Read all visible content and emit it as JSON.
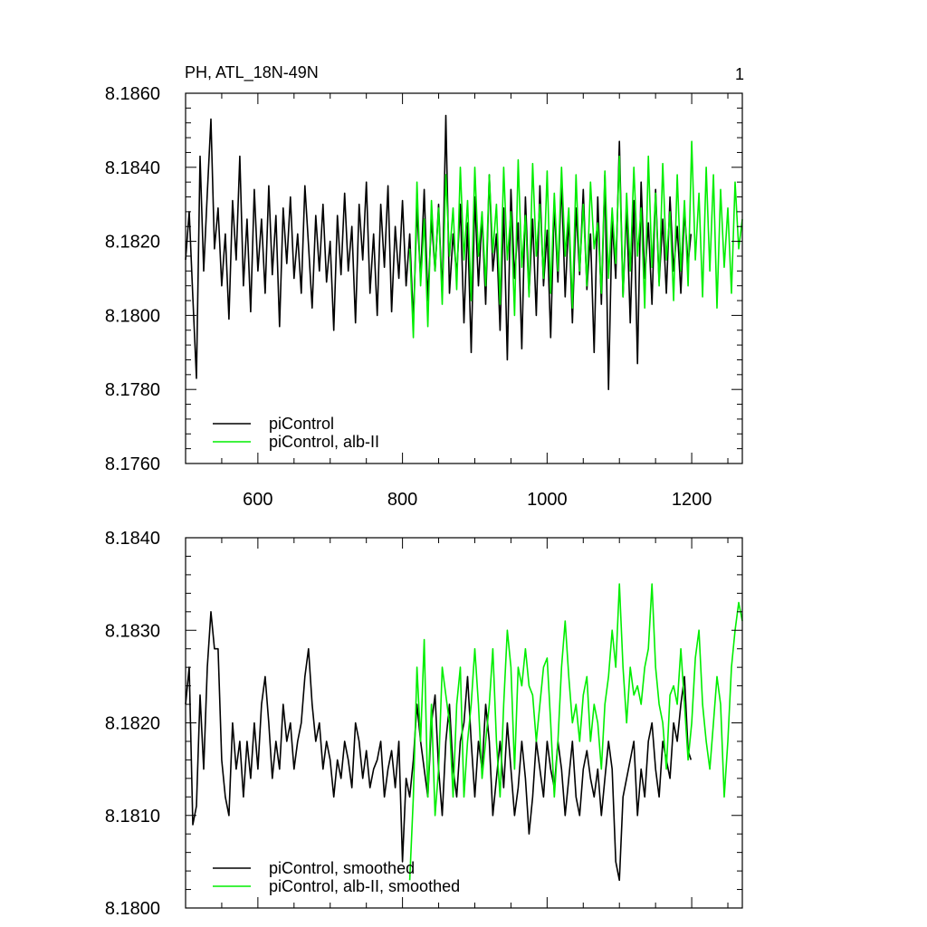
{
  "panel_number": "1",
  "colors": {
    "black_series": "#000000",
    "green_series": "#00ee00",
    "axes": "#000000"
  },
  "chart_data": [
    {
      "type": "line",
      "title": "PH, ATL_18N-49N",
      "xlabel": "",
      "ylabel": "",
      "xlim": [
        500,
        1270
      ],
      "ylim": [
        8.176,
        8.186
      ],
      "xticks": [
        600,
        800,
        1000,
        1200
      ],
      "xtick_labels": [
        "600",
        "800",
        "1000",
        "1200"
      ],
      "yticks": [
        8.176,
        8.178,
        8.18,
        8.182,
        8.184,
        8.186
      ],
      "ytick_labels": [
        "8.1760",
        "8.1780",
        "8.1800",
        "8.1820",
        "8.1840",
        "8.1860"
      ],
      "legend_position": "bottom-left",
      "series": [
        {
          "name": "piControl",
          "color": "#000000",
          "x": [
            500,
            505,
            510,
            515,
            520,
            525,
            530,
            535,
            540,
            545,
            550,
            555,
            560,
            565,
            570,
            575,
            580,
            585,
            590,
            595,
            600,
            605,
            610,
            615,
            620,
            625,
            630,
            635,
            640,
            645,
            650,
            655,
            660,
            665,
            670,
            675,
            680,
            685,
            690,
            695,
            700,
            705,
            710,
            715,
            720,
            725,
            730,
            735,
            740,
            745,
            750,
            755,
            760,
            765,
            770,
            775,
            780,
            785,
            790,
            795,
            800,
            805,
            810,
            815,
            820,
            825,
            830,
            835,
            840,
            845,
            850,
            855,
            860,
            865,
            870,
            875,
            880,
            885,
            890,
            895,
            900,
            905,
            910,
            915,
            920,
            925,
            930,
            935,
            940,
            945,
            950,
            955,
            960,
            965,
            970,
            975,
            980,
            985,
            990,
            995,
            1000,
            1005,
            1010,
            1015,
            1020,
            1025,
            1030,
            1035,
            1040,
            1045,
            1050,
            1055,
            1060,
            1065,
            1070,
            1075,
            1080,
            1085,
            1090,
            1095,
            1100,
            1105,
            1110,
            1115,
            1120,
            1125,
            1130,
            1135,
            1140,
            1145,
            1150,
            1155,
            1160,
            1165,
            1170,
            1175,
            1180,
            1185,
            1190,
            1195,
            1199
          ],
          "y": [
            8.1815,
            8.1828,
            8.1805,
            8.1783,
            8.1843,
            8.1812,
            8.1833,
            8.1853,
            8.1818,
            8.1829,
            8.1808,
            8.1822,
            8.1799,
            8.1831,
            8.1815,
            8.1843,
            8.1808,
            8.1826,
            8.1801,
            8.1834,
            8.1812,
            8.1826,
            8.1806,
            8.1835,
            8.1811,
            8.1827,
            8.1797,
            8.1829,
            8.1814,
            8.1832,
            8.181,
            8.1822,
            8.1806,
            8.1835,
            8.1819,
            8.1802,
            8.1827,
            8.1812,
            8.183,
            8.1809,
            8.182,
            8.1796,
            8.1827,
            8.1811,
            8.1833,
            8.1812,
            8.1824,
            8.1798,
            8.183,
            8.1815,
            8.1836,
            8.1806,
            8.1822,
            8.18,
            8.183,
            8.1813,
            8.1835,
            8.1801,
            8.1824,
            8.181,
            8.1831,
            8.1808,
            8.1822,
            8.1798,
            8.1829,
            8.181,
            8.1834,
            8.1804,
            8.1826,
            8.1812,
            8.183,
            8.1805,
            8.1854,
            8.1806,
            8.1822,
            8.1811,
            8.183,
            8.1798,
            8.1825,
            8.179,
            8.1832,
            8.1808,
            8.1827,
            8.1803,
            8.1838,
            8.1812,
            8.1822,
            8.1796,
            8.1829,
            8.1788,
            8.1834,
            8.181,
            8.1825,
            8.1791,
            8.1832,
            8.1806,
            8.1826,
            8.18,
            8.1835,
            8.1808,
            8.1823,
            8.1794,
            8.183,
            8.1809,
            8.1836,
            8.1805,
            8.1827,
            8.1798,
            8.1829,
            8.1811,
            8.1834,
            8.1807,
            8.1822,
            8.179,
            8.1832,
            8.1803,
            8.1838,
            8.178,
            8.1826,
            8.181,
            8.1847,
            8.1805,
            8.1829,
            8.1798,
            8.1831,
            8.1787,
            8.1836,
            8.181,
            8.1825,
            8.1803,
            8.1834,
            8.1809,
            8.1826,
            8.1806,
            8.1832,
            8.1812,
            8.1824,
            8.1806,
            8.1828,
            8.1814,
            8.1822
          ]
        },
        {
          "name": "piControl, alb-II",
          "color": "#00ee00",
          "x": [
            810,
            815,
            820,
            825,
            830,
            835,
            840,
            845,
            850,
            855,
            860,
            865,
            870,
            875,
            880,
            885,
            890,
            895,
            900,
            905,
            910,
            915,
            920,
            925,
            930,
            935,
            940,
            945,
            950,
            955,
            960,
            965,
            970,
            975,
            980,
            985,
            990,
            995,
            1000,
            1005,
            1010,
            1015,
            1020,
            1025,
            1030,
            1035,
            1040,
            1045,
            1050,
            1055,
            1060,
            1065,
            1070,
            1075,
            1080,
            1085,
            1090,
            1095,
            1100,
            1105,
            1110,
            1115,
            1120,
            1125,
            1130,
            1135,
            1140,
            1145,
            1150,
            1155,
            1160,
            1165,
            1170,
            1175,
            1180,
            1185,
            1190,
            1195,
            1200,
            1205,
            1210,
            1215,
            1220,
            1225,
            1230,
            1235,
            1240,
            1245,
            1250,
            1255,
            1260,
            1265,
            1270
          ],
          "y": [
            8.1818,
            8.1794,
            8.1836,
            8.1808,
            8.1826,
            8.1797,
            8.1831,
            8.1812,
            8.1829,
            8.1803,
            8.1838,
            8.1816,
            8.1829,
            8.1807,
            8.184,
            8.1815,
            8.1831,
            8.1804,
            8.184,
            8.1816,
            8.1828,
            8.1808,
            8.1838,
            8.1817,
            8.183,
            8.1803,
            8.184,
            8.1815,
            8.1828,
            8.18,
            8.1842,
            8.1813,
            8.1827,
            8.1805,
            8.1841,
            8.1816,
            8.183,
            8.181,
            8.1839,
            8.1806,
            8.1833,
            8.1812,
            8.184,
            8.1816,
            8.1829,
            8.1802,
            8.1838,
            8.1812,
            8.183,
            8.1808,
            8.1836,
            8.1818,
            8.1825,
            8.1806,
            8.1839,
            8.181,
            8.1829,
            8.1814,
            8.1843,
            8.1805,
            8.1833,
            8.1812,
            8.184,
            8.1816,
            8.1829,
            8.1802,
            8.1843,
            8.1813,
            8.1833,
            8.1808,
            8.1841,
            8.1815,
            8.1828,
            8.1804,
            8.1838,
            8.1812,
            8.1831,
            8.1808,
            8.1847,
            8.1815,
            8.1833,
            8.1805,
            8.184,
            8.1812,
            8.1838,
            8.1802,
            8.1834,
            8.1813,
            8.1829,
            8.1806,
            8.1836,
            8.1818,
            8.1826
          ]
        }
      ]
    },
    {
      "type": "line",
      "title": "",
      "xlabel": "",
      "ylabel": "",
      "xlim": [
        500,
        1270
      ],
      "ylim": [
        8.18,
        8.184
      ],
      "xticks": [
        600,
        800,
        1000,
        1200
      ],
      "yticks": [
        8.18,
        8.181,
        8.182,
        8.183,
        8.184
      ],
      "ytick_labels": [
        "8.1800",
        "8.1810",
        "8.1820",
        "8.1830",
        "8.1840"
      ],
      "legend_position": "bottom-left",
      "series": [
        {
          "name": "piControl, smoothed",
          "color": "#000000",
          "x": [
            500,
            505,
            510,
            515,
            520,
            525,
            530,
            535,
            540,
            545,
            550,
            555,
            560,
            565,
            570,
            575,
            580,
            585,
            590,
            595,
            600,
            605,
            610,
            615,
            620,
            625,
            630,
            635,
            640,
            645,
            650,
            655,
            660,
            665,
            670,
            675,
            680,
            685,
            690,
            695,
            700,
            705,
            710,
            715,
            720,
            725,
            730,
            735,
            740,
            745,
            750,
            755,
            760,
            765,
            770,
            775,
            780,
            785,
            790,
            795,
            800,
            805,
            810,
            815,
            820,
            825,
            830,
            835,
            840,
            845,
            850,
            855,
            860,
            865,
            870,
            875,
            880,
            885,
            890,
            895,
            900,
            905,
            910,
            915,
            920,
            925,
            930,
            935,
            940,
            945,
            950,
            955,
            960,
            965,
            970,
            975,
            980,
            985,
            990,
            995,
            1000,
            1005,
            1010,
            1015,
            1020,
            1025,
            1030,
            1035,
            1040,
            1045,
            1050,
            1055,
            1060,
            1065,
            1070,
            1075,
            1080,
            1085,
            1090,
            1095,
            1100,
            1105,
            1110,
            1115,
            1120,
            1125,
            1130,
            1135,
            1140,
            1145,
            1150,
            1155,
            1160,
            1165,
            1170,
            1175,
            1180,
            1185,
            1190,
            1195,
            1199
          ],
          "y": [
            8.1822,
            8.1826,
            8.1809,
            8.1811,
            8.1823,
            8.1815,
            8.1826,
            8.1832,
            8.1828,
            8.1828,
            8.1816,
            8.1812,
            8.181,
            8.182,
            8.1815,
            8.1818,
            8.1812,
            8.1818,
            8.1814,
            8.182,
            8.1815,
            8.1822,
            8.1825,
            8.182,
            8.1814,
            8.1818,
            8.1815,
            8.1822,
            8.1818,
            8.182,
            8.1815,
            8.1818,
            8.182,
            8.1825,
            8.1828,
            8.1822,
            8.1818,
            8.182,
            8.1815,
            8.1818,
            8.1816,
            8.1812,
            8.1816,
            8.1814,
            8.1818,
            8.1816,
            8.1813,
            8.182,
            8.1818,
            8.1814,
            8.1817,
            8.1813,
            8.1815,
            8.1816,
            8.1818,
            8.1812,
            8.1815,
            8.1817,
            8.1813,
            8.1818,
            8.1805,
            8.1814,
            8.1812,
            8.1816,
            8.1822,
            8.1818,
            8.1815,
            8.1812,
            8.182,
            8.1823,
            8.1815,
            8.181,
            8.1818,
            8.1822,
            8.1815,
            8.1812,
            8.1818,
            8.182,
            8.1825,
            8.1818,
            8.1812,
            8.1818,
            8.1815,
            8.1822,
            8.1818,
            8.181,
            8.1814,
            8.1818,
            8.1813,
            8.182,
            8.1815,
            8.181,
            8.1813,
            8.1818,
            8.1814,
            8.1808,
            8.1812,
            8.1818,
            8.1815,
            8.1812,
            8.1818,
            8.1815,
            8.1813,
            8.1818,
            8.1815,
            8.181,
            8.1814,
            8.1818,
            8.1812,
            8.181,
            8.1815,
            8.1817,
            8.1814,
            8.1812,
            8.1815,
            8.181,
            8.1814,
            8.1818,
            8.1815,
            8.1805,
            8.1803,
            8.1812,
            8.1814,
            8.1816,
            8.1818,
            8.181,
            8.1815,
            8.1812,
            8.1818,
            8.182,
            8.1815,
            8.1812,
            8.1818,
            8.1816,
            8.1814,
            8.182,
            8.1818,
            8.1822,
            8.1825,
            8.1817,
            8.1816
          ]
        },
        {
          "name": "piControl, alb-II, smoothed",
          "color": "#00ee00",
          "x": [
            810,
            815,
            820,
            825,
            830,
            835,
            840,
            845,
            850,
            855,
            860,
            865,
            870,
            875,
            880,
            885,
            890,
            895,
            900,
            905,
            910,
            915,
            920,
            925,
            930,
            935,
            940,
            945,
            950,
            955,
            960,
            965,
            970,
            975,
            980,
            985,
            990,
            995,
            1000,
            1005,
            1010,
            1015,
            1020,
            1025,
            1030,
            1035,
            1040,
            1045,
            1050,
            1055,
            1060,
            1065,
            1070,
            1075,
            1080,
            1085,
            1090,
            1095,
            1100,
            1105,
            1110,
            1115,
            1120,
            1125,
            1130,
            1135,
            1140,
            1145,
            1150,
            1155,
            1160,
            1165,
            1170,
            1175,
            1180,
            1185,
            1190,
            1195,
            1200,
            1205,
            1210,
            1215,
            1220,
            1225,
            1230,
            1235,
            1240,
            1245,
            1250,
            1255,
            1260,
            1265,
            1270
          ],
          "y": [
            8.1803,
            8.1812,
            8.1826,
            8.1818,
            8.1829,
            8.1812,
            8.1822,
            8.181,
            8.1815,
            8.1826,
            8.1823,
            8.182,
            8.1812,
            8.1822,
            8.1826,
            8.1812,
            8.1818,
            8.1822,
            8.1828,
            8.1822,
            8.1814,
            8.1818,
            8.1822,
            8.1828,
            8.1818,
            8.1812,
            8.1822,
            8.183,
            8.1826,
            8.1815,
            8.1826,
            8.1824,
            8.1828,
            8.1824,
            8.1823,
            8.1818,
            8.1822,
            8.1826,
            8.1827,
            8.182,
            8.1812,
            8.1818,
            8.1826,
            8.1831,
            8.1825,
            8.182,
            8.1822,
            8.1818,
            8.1823,
            8.1825,
            8.1818,
            8.1822,
            8.182,
            8.1815,
            8.1822,
            8.1825,
            8.183,
            8.1826,
            8.1835,
            8.1826,
            8.182,
            8.1826,
            8.1823,
            8.1824,
            8.1822,
            8.1826,
            8.1828,
            8.1835,
            8.1826,
            8.1822,
            8.182,
            8.1815,
            8.1823,
            8.1824,
            8.1822,
            8.1828,
            8.1822,
            8.1816,
            8.182,
            8.1827,
            8.183,
            8.1822,
            8.1818,
            8.1815,
            8.182,
            8.1825,
            8.1822,
            8.1812,
            8.1818,
            8.1826,
            8.183,
            8.1833,
            8.1831
          ]
        }
      ]
    }
  ]
}
